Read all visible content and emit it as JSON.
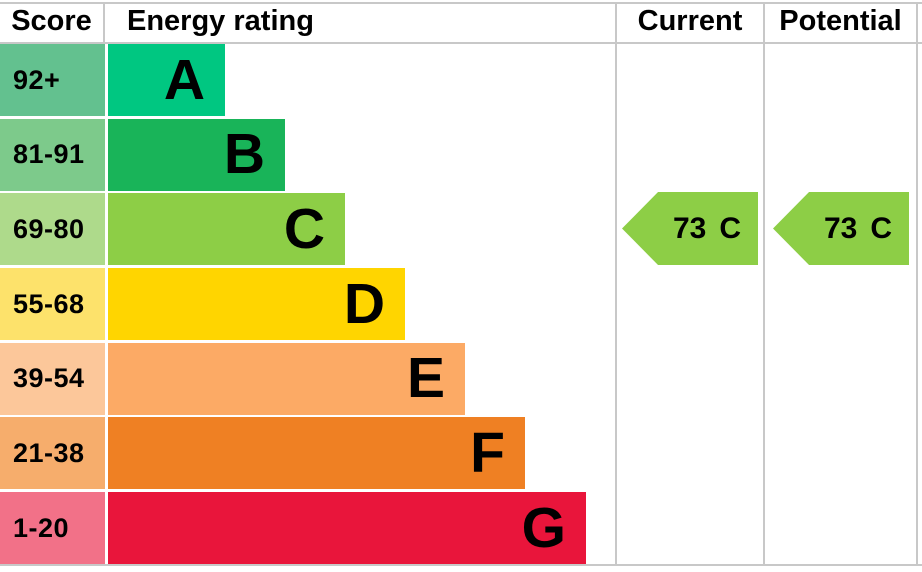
{
  "chart_data": {
    "type": "bar",
    "columns": [
      "Score",
      "Energy rating",
      "Current",
      "Potential"
    ],
    "bands": [
      {
        "letter": "A",
        "score_range": "92+",
        "bar_color": "#00c781",
        "score_bg": "#63c18f"
      },
      {
        "letter": "B",
        "score_range": "81-91",
        "bar_color": "#19b459",
        "score_bg": "#7dca8b"
      },
      {
        "letter": "C",
        "score_range": "69-80",
        "bar_color": "#8dce46",
        "score_bg": "#aeda8b"
      },
      {
        "letter": "D",
        "score_range": "55-68",
        "bar_color": "#ffd500",
        "score_bg": "#fde26b"
      },
      {
        "letter": "E",
        "score_range": "39-54",
        "bar_color": "#fcaa65",
        "score_bg": "#fcc79a"
      },
      {
        "letter": "F",
        "score_range": "21-38",
        "bar_color": "#ef8023",
        "score_bg": "#f6ad6c"
      },
      {
        "letter": "G",
        "score_range": "1-20",
        "bar_color": "#e9153b",
        "score_bg": "#f27188"
      }
    ],
    "current": {
      "value": "73",
      "band": "C",
      "arrow_color": "#8dce46"
    },
    "potential": {
      "value": "73",
      "band": "C",
      "arrow_color": "#8dce46"
    }
  }
}
